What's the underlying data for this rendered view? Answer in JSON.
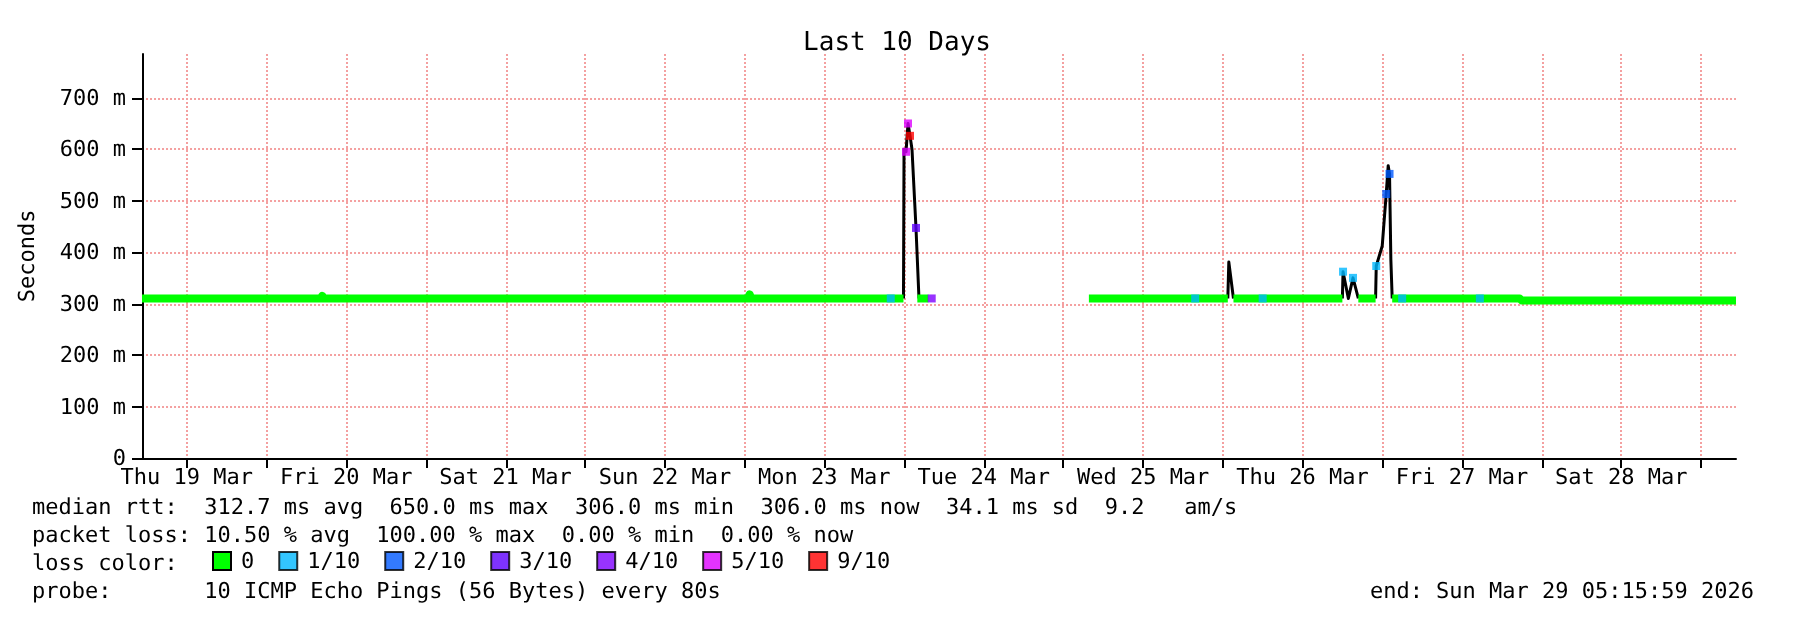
{
  "chart_data": {
    "type": "line",
    "title": "Last 10 Days",
    "ylabel": "Seconds",
    "xlim": [
      "2026-03-19T05:16",
      "2026-03-29T05:16"
    ],
    "xticks": [
      {
        "value": "2026-03-19T12:00",
        "label": "Thu 19 Mar"
      },
      {
        "value": "2026-03-20T00:00",
        "label": null
      },
      {
        "value": "2026-03-20T12:00",
        "label": "Fri 20 Mar"
      },
      {
        "value": "2026-03-21T00:00",
        "label": null
      },
      {
        "value": "2026-03-21T12:00",
        "label": "Sat 21 Mar"
      },
      {
        "value": "2026-03-22T00:00",
        "label": null
      },
      {
        "value": "2026-03-22T12:00",
        "label": "Sun 22 Mar"
      },
      {
        "value": "2026-03-23T00:00",
        "label": null
      },
      {
        "value": "2026-03-23T12:00",
        "label": "Mon 23 Mar"
      },
      {
        "value": "2026-03-24T00:00",
        "label": null
      },
      {
        "value": "2026-03-24T12:00",
        "label": "Tue 24 Mar"
      },
      {
        "value": "2026-03-25T00:00",
        "label": null
      },
      {
        "value": "2026-03-25T12:00",
        "label": "Wed 25 Mar"
      },
      {
        "value": "2026-03-26T00:00",
        "label": null
      },
      {
        "value": "2026-03-26T12:00",
        "label": "Thu 26 Mar"
      },
      {
        "value": "2026-03-27T00:00",
        "label": null
      },
      {
        "value": "2026-03-27T12:00",
        "label": "Fri 27 Mar"
      },
      {
        "value": "2026-03-28T00:00",
        "label": null
      },
      {
        "value": "2026-03-28T12:00",
        "label": "Sat 28 Mar"
      },
      {
        "value": "2026-03-29T00:00",
        "label": null
      }
    ],
    "ylim": [
      0,
      785
    ],
    "yticks": [
      0,
      {
        "value": 100,
        "label": "100 m"
      },
      {
        "value": 200,
        "label": "200 m"
      },
      {
        "value": 300,
        "label": "300 m"
      },
      {
        "value": 400,
        "label": "400 m"
      },
      {
        "value": 500,
        "label": "500 m"
      },
      {
        "value": 600,
        "label": "600 m"
      },
      {
        "value": 700,
        "label": "700 m"
      }
    ],
    "grid": true,
    "legend": "bottom",
    "legend_title": "loss color:",
    "series": [
      {
        "color": "#000000",
        "x": [
          "2026-03-23T23:55",
          "2026-03-24T00:00",
          "2026-03-24T00:18",
          "2026-03-24T00:36",
          "2026-03-24T00:54",
          "2026-03-24T01:12",
          "2026-03-24T01:48",
          "2026-03-24T02:15",
          null,
          "2026-03-26T00:45",
          "2026-03-26T00:54",
          "2026-03-26T01:36",
          null,
          "2026-03-26T18:00",
          "2026-03-26T18:06",
          "2026-03-26T18:54",
          "2026-03-26T19:36",
          "2026-03-26T20:24",
          null,
          "2026-03-26T23:00",
          "2026-03-26T23:06",
          "2026-03-27T00:00",
          "2026-03-27T00:36",
          "2026-03-27T00:54",
          "2026-03-27T01:06",
          "2026-03-27T01:18",
          "2026-03-27T01:30"
        ],
        "values": [
          310,
          600,
          595,
          650,
          626,
          600,
          447,
          310,
          null,
          310,
          381,
          310,
          null,
          310,
          362,
          310,
          350,
          310,
          null,
          310,
          373,
          412,
          513,
          568,
          552,
          385,
          310
        ]
      },
      {
        "name": "0",
        "color": "#00ff00",
        "x": [
          "2026-03-19T05:16",
          "2026-03-20T08:10",
          "2026-03-20T08:24",
          "2026-03-20T08:40",
          "2026-03-23T00:30",
          "2026-03-23T00:45",
          "2026-03-23T01:00",
          "2026-03-23T23:55",
          null,
          "2026-03-24T02:00",
          "2026-03-24T03:40",
          null,
          "2026-03-25T03:50",
          "2026-03-26T00:45",
          null,
          "2026-03-26T01:36",
          "2026-03-26T18:00",
          null,
          "2026-03-26T20:24",
          "2026-03-26T23:00",
          null,
          "2026-03-27T01:30",
          "2026-03-27T20:42",
          "2026-03-27T21:00",
          "2026-03-29T05:16"
        ],
        "values": [
          310,
          310,
          315,
          310,
          310,
          318,
          310,
          310,
          null,
          310,
          310,
          null,
          310,
          310,
          null,
          310,
          310,
          null,
          310,
          310,
          null,
          310,
          310,
          306,
          306
        ]
      },
      {
        "type": "scatter",
        "name": "1/10",
        "color": "#00b8ff",
        "x": [
          "2026-03-23T22:00",
          "2026-03-25T19:50",
          "2026-03-26T06:00",
          "2026-03-26T18:06",
          "2026-03-26T19:36",
          "2026-03-26T23:06",
          "2026-03-27T03:00",
          "2026-03-27T14:42"
        ],
        "values": [
          310,
          310,
          310,
          362,
          350,
          373,
          310,
          310
        ]
      },
      {
        "type": "scatter",
        "name": "2/10",
        "color": "#0059ff",
        "x": [
          "2026-03-27T00:36",
          "2026-03-27T01:06"
        ],
        "values": [
          513,
          552
        ]
      },
      {
        "type": "scatter",
        "name": "3/10",
        "color": "#5e00ff",
        "x": [
          "2026-03-24T01:48"
        ],
        "values": [
          447
        ]
      },
      {
        "type": "scatter",
        "name": "4/10",
        "color": "#7e00ff",
        "x": [
          "2026-03-24T04:10"
        ],
        "values": [
          310
        ]
      },
      {
        "type": "scatter",
        "name": "5/10",
        "color": "#dd00ff",
        "x": [
          "2026-03-24T00:18",
          "2026-03-24T00:36"
        ],
        "values": [
          595,
          650
        ]
      },
      {
        "type": "scatter",
        "name": "9/10",
        "color": "#ff0000",
        "x": [
          "2026-03-24T00:54"
        ],
        "values": [
          626
        ]
      }
    ],
    "annotations": [
      "median rtt:  312.7 ms avg  650.0 ms max  306.0 ms min  306.0 ms now  34.1 ms sd  9.2   am/s",
      "packet loss: 10.50 % avg  100.00 % max  0.00 % min  0.00 % now",
      "probe:       10 ICMP Echo Pings (56 Bytes) every 80s",
      "end: Sun Mar 29 05:15:59 2026"
    ]
  }
}
